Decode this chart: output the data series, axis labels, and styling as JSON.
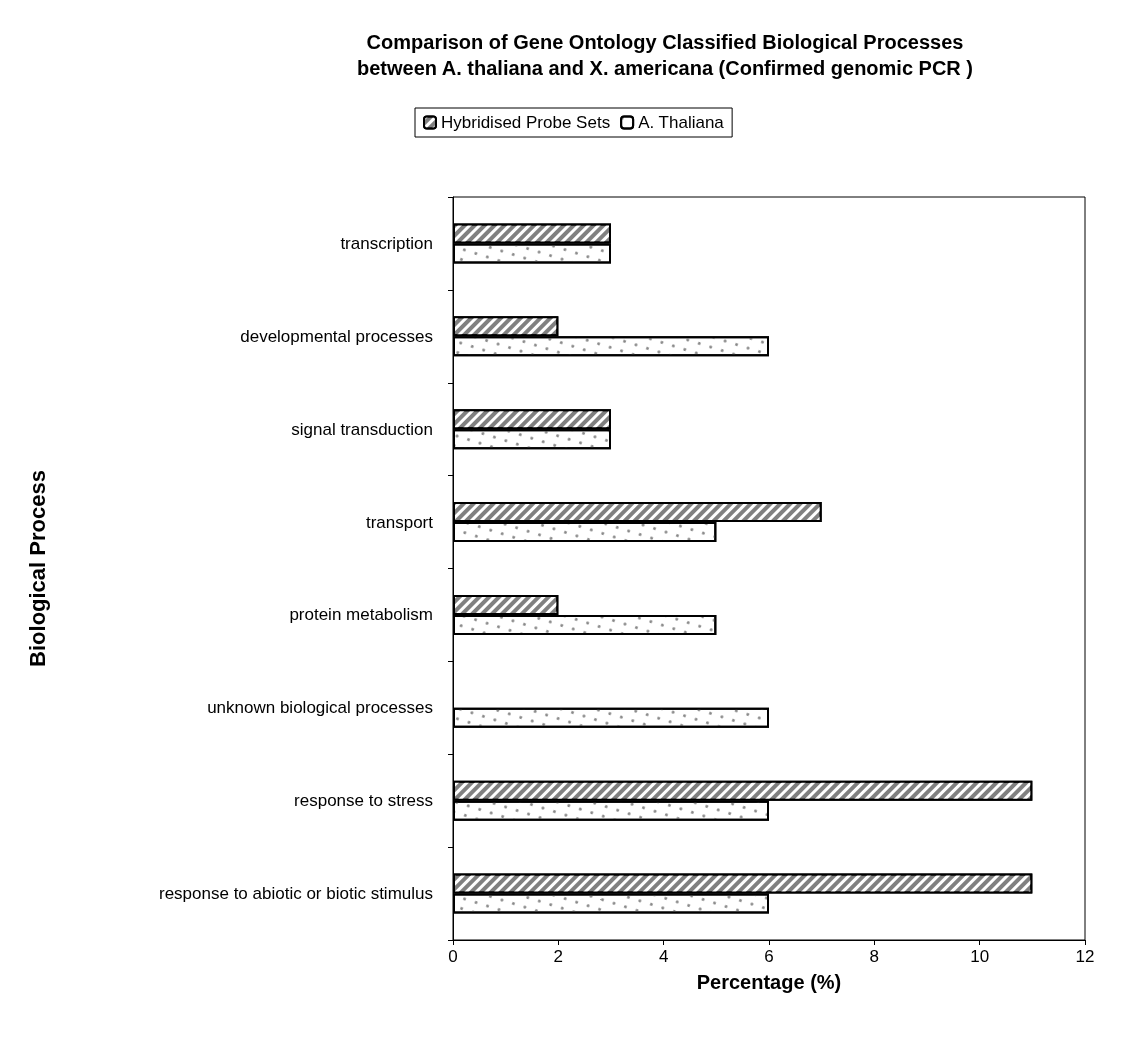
{
  "chart_data": {
    "type": "bar",
    "orientation": "horizontal",
    "title": "Comparison of Gene Ontology Classified Biological Processes\nbetween A. thaliana and X. americana (Confirmed genomic PCR )",
    "xlabel": "Percentage (%)",
    "ylabel": "Biological Process",
    "categories": [
      "transcription",
      "developmental processes",
      "signal transduction",
      "transport",
      "protein metabolism",
      "unknown biological processes",
      "response to stress",
      "response to abiotic or biotic stimulus"
    ],
    "series": [
      {
        "name": "Hybridised Probe Sets",
        "color": "#808080",
        "values": [
          3,
          2,
          3,
          7,
          2,
          null,
          11,
          11
        ]
      },
      {
        "name": "A. Thaliana",
        "color": "#ffffff",
        "values": [
          3,
          6,
          3,
          5,
          5,
          6,
          6,
          6
        ]
      }
    ],
    "xlim": [
      0,
      12
    ],
    "xticks": [
      0,
      2,
      4,
      6,
      8,
      10,
      12
    ],
    "grid": false,
    "legend": "top"
  }
}
